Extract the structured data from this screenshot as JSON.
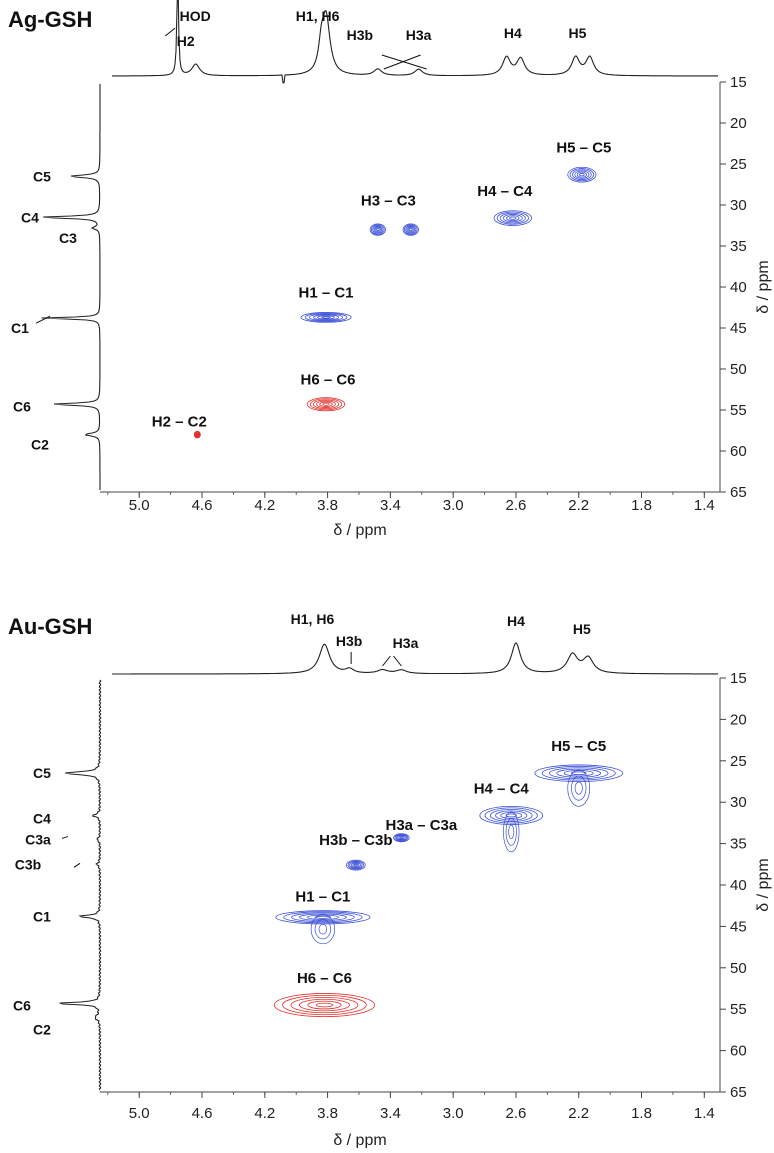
{
  "colors": {
    "positive": "#3a4fd8",
    "negative": "#e0302a",
    "trace": "#222222",
    "axis": "#444444"
  },
  "chart_data": [
    {
      "type": "heatmap",
      "subtype": "2D NMR HSQC contour plot",
      "title": "Ag-GSH",
      "xlabel": "δ / ppm",
      "ylabel": "δ / ppm",
      "x_reversed": true,
      "xlim": [
        5.25,
        1.3
      ],
      "ylim": [
        15,
        65
      ],
      "xticks": [
        "5.0",
        "4.6",
        "4.2",
        "3.8",
        "3.4",
        "3.0",
        "2.6",
        "2.2",
        "1.8",
        "1.4"
      ],
      "yticks": [
        "15",
        "20",
        "25",
        "30",
        "35",
        "40",
        "45",
        "50",
        "55",
        "60",
        "65"
      ],
      "top_spectrum_labels": [
        {
          "label": "HOD",
          "x": 4.72
        },
        {
          "label": "H2",
          "x": 4.64
        },
        {
          "label": "H1, H6",
          "x": 3.8
        },
        {
          "label": "H3b",
          "x": 3.48
        },
        {
          "label": "H3a",
          "x": 3.22
        },
        {
          "label": "H4",
          "x": 2.62
        },
        {
          "label": "H5",
          "x": 2.17
        }
      ],
      "side_spectrum_labels": [
        {
          "label": "C5",
          "y": 26.5
        },
        {
          "label": "C4",
          "y": 31.5
        },
        {
          "label": "C3",
          "y": 32.8
        },
        {
          "label": "C1",
          "y": 43.8
        },
        {
          "label": "C6",
          "y": 54.3
        },
        {
          "label": "C2",
          "y": 58.0
        }
      ],
      "cross_peaks": [
        {
          "label": "H5 – C5",
          "x": 2.18,
          "y": 26.3,
          "sign": "positive",
          "xw": 0.09,
          "yw": 0.9
        },
        {
          "label": "H4 – C4",
          "x": 2.62,
          "y": 31.6,
          "sign": "positive",
          "xw": 0.12,
          "yw": 0.9
        },
        {
          "label": "H3 – C3",
          "x": 3.4,
          "y": 33.0,
          "sign": "positive",
          "xw": 0.14,
          "yw": 0.7,
          "extra": [
            {
              "x": 3.48,
              "y": 33.0
            },
            {
              "x": 3.27,
              "y": 33.0
            }
          ]
        },
        {
          "label": "H1 – C1",
          "x": 3.81,
          "y": 43.7,
          "sign": "positive",
          "xw": 0.16,
          "yw": 0.6
        },
        {
          "label": "H6 – C6",
          "x": 3.81,
          "y": 54.3,
          "sign": "negative",
          "xw": 0.12,
          "yw": 0.8
        },
        {
          "label": "H2 – C2",
          "x": 4.63,
          "y": 58.0,
          "sign": "negative",
          "xw": 0.02,
          "yw": 0.4
        }
      ]
    },
    {
      "type": "heatmap",
      "subtype": "2D NMR HSQC contour plot",
      "title": "Au-GSH",
      "xlabel": "δ / ppm",
      "ylabel": "δ / ppm",
      "x_reversed": true,
      "xlim": [
        5.25,
        1.3
      ],
      "ylim": [
        15,
        65
      ],
      "xticks": [
        "5.0",
        "4.6",
        "4.2",
        "3.8",
        "3.4",
        "3.0",
        "2.6",
        "2.2",
        "1.8",
        "1.4"
      ],
      "yticks": [
        "15",
        "20",
        "25",
        "30",
        "35",
        "40",
        "45",
        "50",
        "55",
        "60",
        "65"
      ],
      "top_spectrum_labels": [
        {
          "label": "H1, H6",
          "x": 3.82
        },
        {
          "label": "H3b",
          "x": 3.65
        },
        {
          "label": "H3a",
          "x": 3.38
        },
        {
          "label": "H4",
          "x": 2.6
        },
        {
          "label": "H5",
          "x": 2.18
        }
      ],
      "side_spectrum_labels": [
        {
          "label": "C5",
          "y": 26.5
        },
        {
          "label": "C4",
          "y": 31.5
        },
        {
          "label": "C3a",
          "y": 34.5
        },
        {
          "label": "C3b",
          "y": 37.5
        },
        {
          "label": "C1",
          "y": 43.8
        },
        {
          "label": "C6",
          "y": 54.3
        },
        {
          "label": "C2",
          "y": 56.0
        }
      ],
      "cross_peaks": [
        {
          "label": "H5 – C5",
          "x": 2.2,
          "y": 26.5,
          "sign": "positive",
          "xw": 0.28,
          "yw": 1.0
        },
        {
          "label": "H4 – C4",
          "x": 2.63,
          "y": 31.6,
          "sign": "positive",
          "xw": 0.2,
          "yw": 1.1
        },
        {
          "label": "H3a – C3a",
          "x": 3.33,
          "y": 34.3,
          "sign": "positive",
          "xw": 0.05,
          "yw": 0.5
        },
        {
          "label": "H3b – C3b",
          "x": 3.62,
          "y": 37.6,
          "sign": "positive",
          "xw": 0.06,
          "yw": 0.6
        },
        {
          "label": "H1 – C1",
          "x": 3.83,
          "y": 43.9,
          "sign": "positive",
          "xw": 0.3,
          "yw": 0.8
        },
        {
          "label": "H6 – C6",
          "x": 3.82,
          "y": 54.5,
          "sign": "negative",
          "xw": 0.32,
          "yw": 1.4
        }
      ]
    }
  ]
}
